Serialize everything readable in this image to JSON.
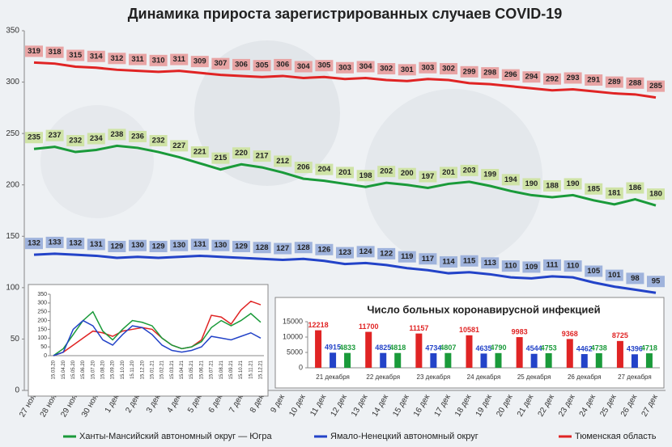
{
  "chart_data": [
    {
      "type": "line",
      "title": "Динамика прироста зарегистрированных случаев COVID-19",
      "categories": [
        "27 ноя",
        "28 ноя",
        "29 ноя",
        "30 ноя",
        "1 дек",
        "2 дек",
        "3 дек",
        "4 дек",
        "5 дек",
        "6 дек",
        "7 дек",
        "8 дек",
        "9 дек",
        "10 дек",
        "11 дек",
        "12 дек",
        "13 дек",
        "14 дек",
        "15 дек",
        "16 дек",
        "17 дек",
        "18 дек",
        "19 дек",
        "20 дек",
        "21 дек",
        "22 дек",
        "23 дек",
        "24 дек",
        "25 дек",
        "26 дек",
        "27 дек"
      ],
      "series": [
        {
          "name": "Ханты-Мансийский автономный округ — Югра",
          "color": "#1a9a3a",
          "label_color": "#cfe3a6",
          "values": [
            235,
            237,
            232,
            234,
            238,
            236,
            232,
            227,
            221,
            215,
            220,
            217,
            212,
            206,
            204,
            201,
            198,
            202,
            200,
            197,
            201,
            203,
            199,
            194,
            190,
            188,
            190,
            185,
            181,
            186,
            180
          ]
        },
        {
          "name": "Ямало-Ненецкий автономный округ",
          "color": "#2343c8",
          "label_color": "#9fb3dc",
          "values": [
            132,
            133,
            132,
            131,
            129,
            130,
            129,
            130,
            131,
            130,
            129,
            128,
            127,
            128,
            126,
            123,
            124,
            122,
            119,
            117,
            114,
            115,
            113,
            110,
            109,
            111,
            110,
            105,
            101,
            98,
            95
          ]
        },
        {
          "name": "Тюменская область",
          "color": "#e02424",
          "label_color": "#e8a4a4",
          "values": [
            319,
            318,
            315,
            314,
            312,
            311,
            310,
            311,
            309,
            307,
            306,
            305,
            306,
            304,
            305,
            303,
            304,
            302,
            301,
            303,
            302,
            299,
            298,
            296,
            294,
            292,
            293,
            291,
            289,
            288,
            285
          ]
        }
      ],
      "ylim": [
        0,
        350
      ],
      "yticks": [
        0,
        50,
        100,
        150,
        200,
        250,
        300,
        350
      ],
      "data_labels": true,
      "legend": "bottom"
    },
    {
      "type": "line",
      "categories": [
        "15.03.20",
        "15.04.20",
        "15.05.20",
        "15.06.20",
        "15.07.20",
        "15.08.20",
        "15.09.20",
        "15.10.20",
        "15.11.20",
        "15.12.20",
        "15.01.21",
        "15.02.21",
        "15.03.21",
        "15.04.21",
        "15.05.21",
        "15.06.21",
        "15.07.21",
        "15.08.21",
        "15.09.21",
        "15.10.21",
        "15.11.21",
        "15.12.21"
      ],
      "series": [
        {
          "color": "#e02424",
          "values": [
            0,
            20,
            60,
            100,
            140,
            130,
            110,
            140,
            150,
            160,
            150,
            100,
            60,
            40,
            50,
            90,
            230,
            220,
            180,
            260,
            310,
            290
          ]
        },
        {
          "color": "#1a9a3a",
          "values": [
            0,
            40,
            120,
            200,
            250,
            140,
            90,
            150,
            200,
            190,
            170,
            100,
            60,
            40,
            50,
            80,
            160,
            200,
            170,
            200,
            240,
            190
          ]
        },
        {
          "color": "#2343c8",
          "values": [
            0,
            20,
            150,
            200,
            170,
            90,
            60,
            120,
            170,
            160,
            120,
            60,
            30,
            20,
            30,
            50,
            110,
            100,
            90,
            110,
            130,
            100
          ]
        }
      ],
      "ylim": [
        0,
        350
      ],
      "yticks": [
        0,
        50,
        100,
        150,
        200,
        250,
        300,
        350
      ]
    },
    {
      "type": "bar",
      "title": "Число больных коронавирусной  инфекцией",
      "categories": [
        "21 декабря",
        "22 декабря",
        "23 декабря",
        "24 декабря",
        "25 декабря",
        "26 декабря",
        "27 декабря"
      ],
      "series": [
        {
          "color": "#e02424",
          "values": [
            12218,
            11700,
            11157,
            10581,
            9983,
            9368,
            8725
          ]
        },
        {
          "color": "#2343c8",
          "values": [
            4915,
            4825,
            4734,
            4635,
            4544,
            4462,
            4396
          ]
        },
        {
          "color": "#1a9a3a",
          "values": [
            4833,
            4818,
            4807,
            4790,
            4753,
            4738,
            4718
          ]
        }
      ],
      "ylim": [
        0,
        15000
      ],
      "yticks": [
        0,
        5000,
        10000,
        15000
      ]
    }
  ]
}
